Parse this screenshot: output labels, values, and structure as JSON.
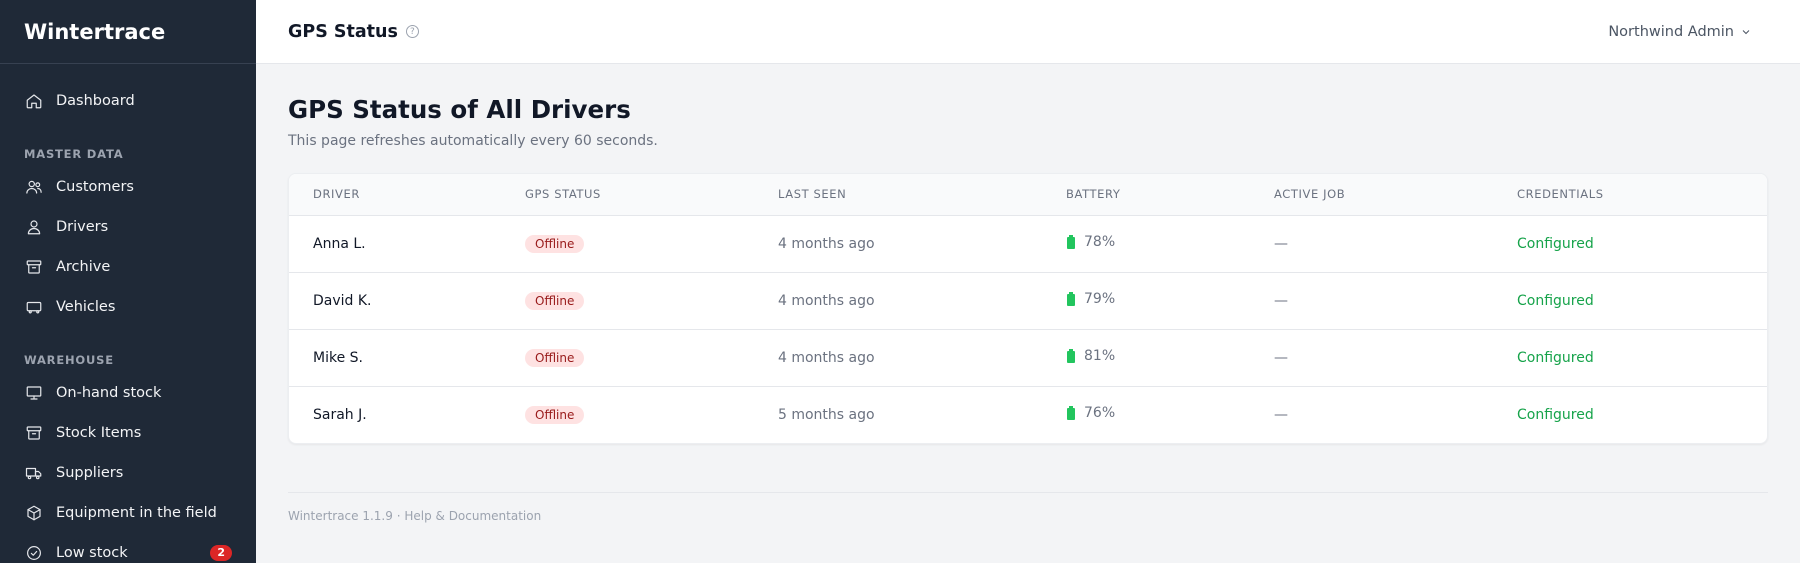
{
  "app": {
    "name": "Wintertrace"
  },
  "header": {
    "title": "GPS Status",
    "help_icon": "?",
    "user": "Northwind Admin"
  },
  "sidebar": {
    "dashboard": {
      "label": "Dashboard",
      "icon": "home-icon"
    },
    "master_data": {
      "label": "MASTER DATA",
      "items": [
        {
          "label": "Customers",
          "icon": "users-icon"
        },
        {
          "label": "Drivers",
          "icon": "user-icon"
        },
        {
          "label": "Archive",
          "icon": "archive-icon"
        },
        {
          "label": "Vehicles",
          "icon": "vehicle-icon"
        }
      ]
    },
    "warehouse": {
      "label": "WAREHOUSE",
      "items": [
        {
          "label": "On-hand stock",
          "icon": "monitor-icon"
        },
        {
          "label": "Stock Items",
          "icon": "archive-icon"
        },
        {
          "label": "Suppliers",
          "icon": "truck-icon"
        },
        {
          "label": "Equipment in the field",
          "icon": "box-icon"
        },
        {
          "label": "Low stock",
          "icon": "check-circle-icon",
          "badge": "2"
        }
      ]
    }
  },
  "page": {
    "title": "GPS Status of All Drivers",
    "subtitle": "This page refreshes automatically every 60 seconds."
  },
  "table": {
    "columns": [
      "DRIVER",
      "GPS STATUS",
      "LAST SEEN",
      "BATTERY",
      "ACTIVE JOB",
      "CREDENTIALS"
    ],
    "rows": [
      {
        "driver": "Anna L.",
        "status": "Offline",
        "last_seen": "4 months ago",
        "battery": "78%",
        "active_job": "—",
        "credentials": "Configured"
      },
      {
        "driver": "David K.",
        "status": "Offline",
        "last_seen": "4 months ago",
        "battery": "79%",
        "active_job": "—",
        "credentials": "Configured"
      },
      {
        "driver": "Mike S.",
        "status": "Offline",
        "last_seen": "4 months ago",
        "battery": "81%",
        "active_job": "—",
        "credentials": "Configured"
      },
      {
        "driver": "Sarah J.",
        "status": "Offline",
        "last_seen": "5 months ago",
        "battery": "76%",
        "active_job": "—",
        "credentials": "Configured"
      }
    ]
  },
  "footer": {
    "version": "Wintertrace 1.1.9",
    "separator": " · ",
    "help": "Help & Documentation"
  },
  "colors": {
    "sidebar_bg": "#1f2937",
    "offline_bg": "#fee2e2",
    "offline_text": "#991b1b",
    "configured": "#16a34a",
    "battery": "#22c55e",
    "badge": "#dc2626"
  }
}
